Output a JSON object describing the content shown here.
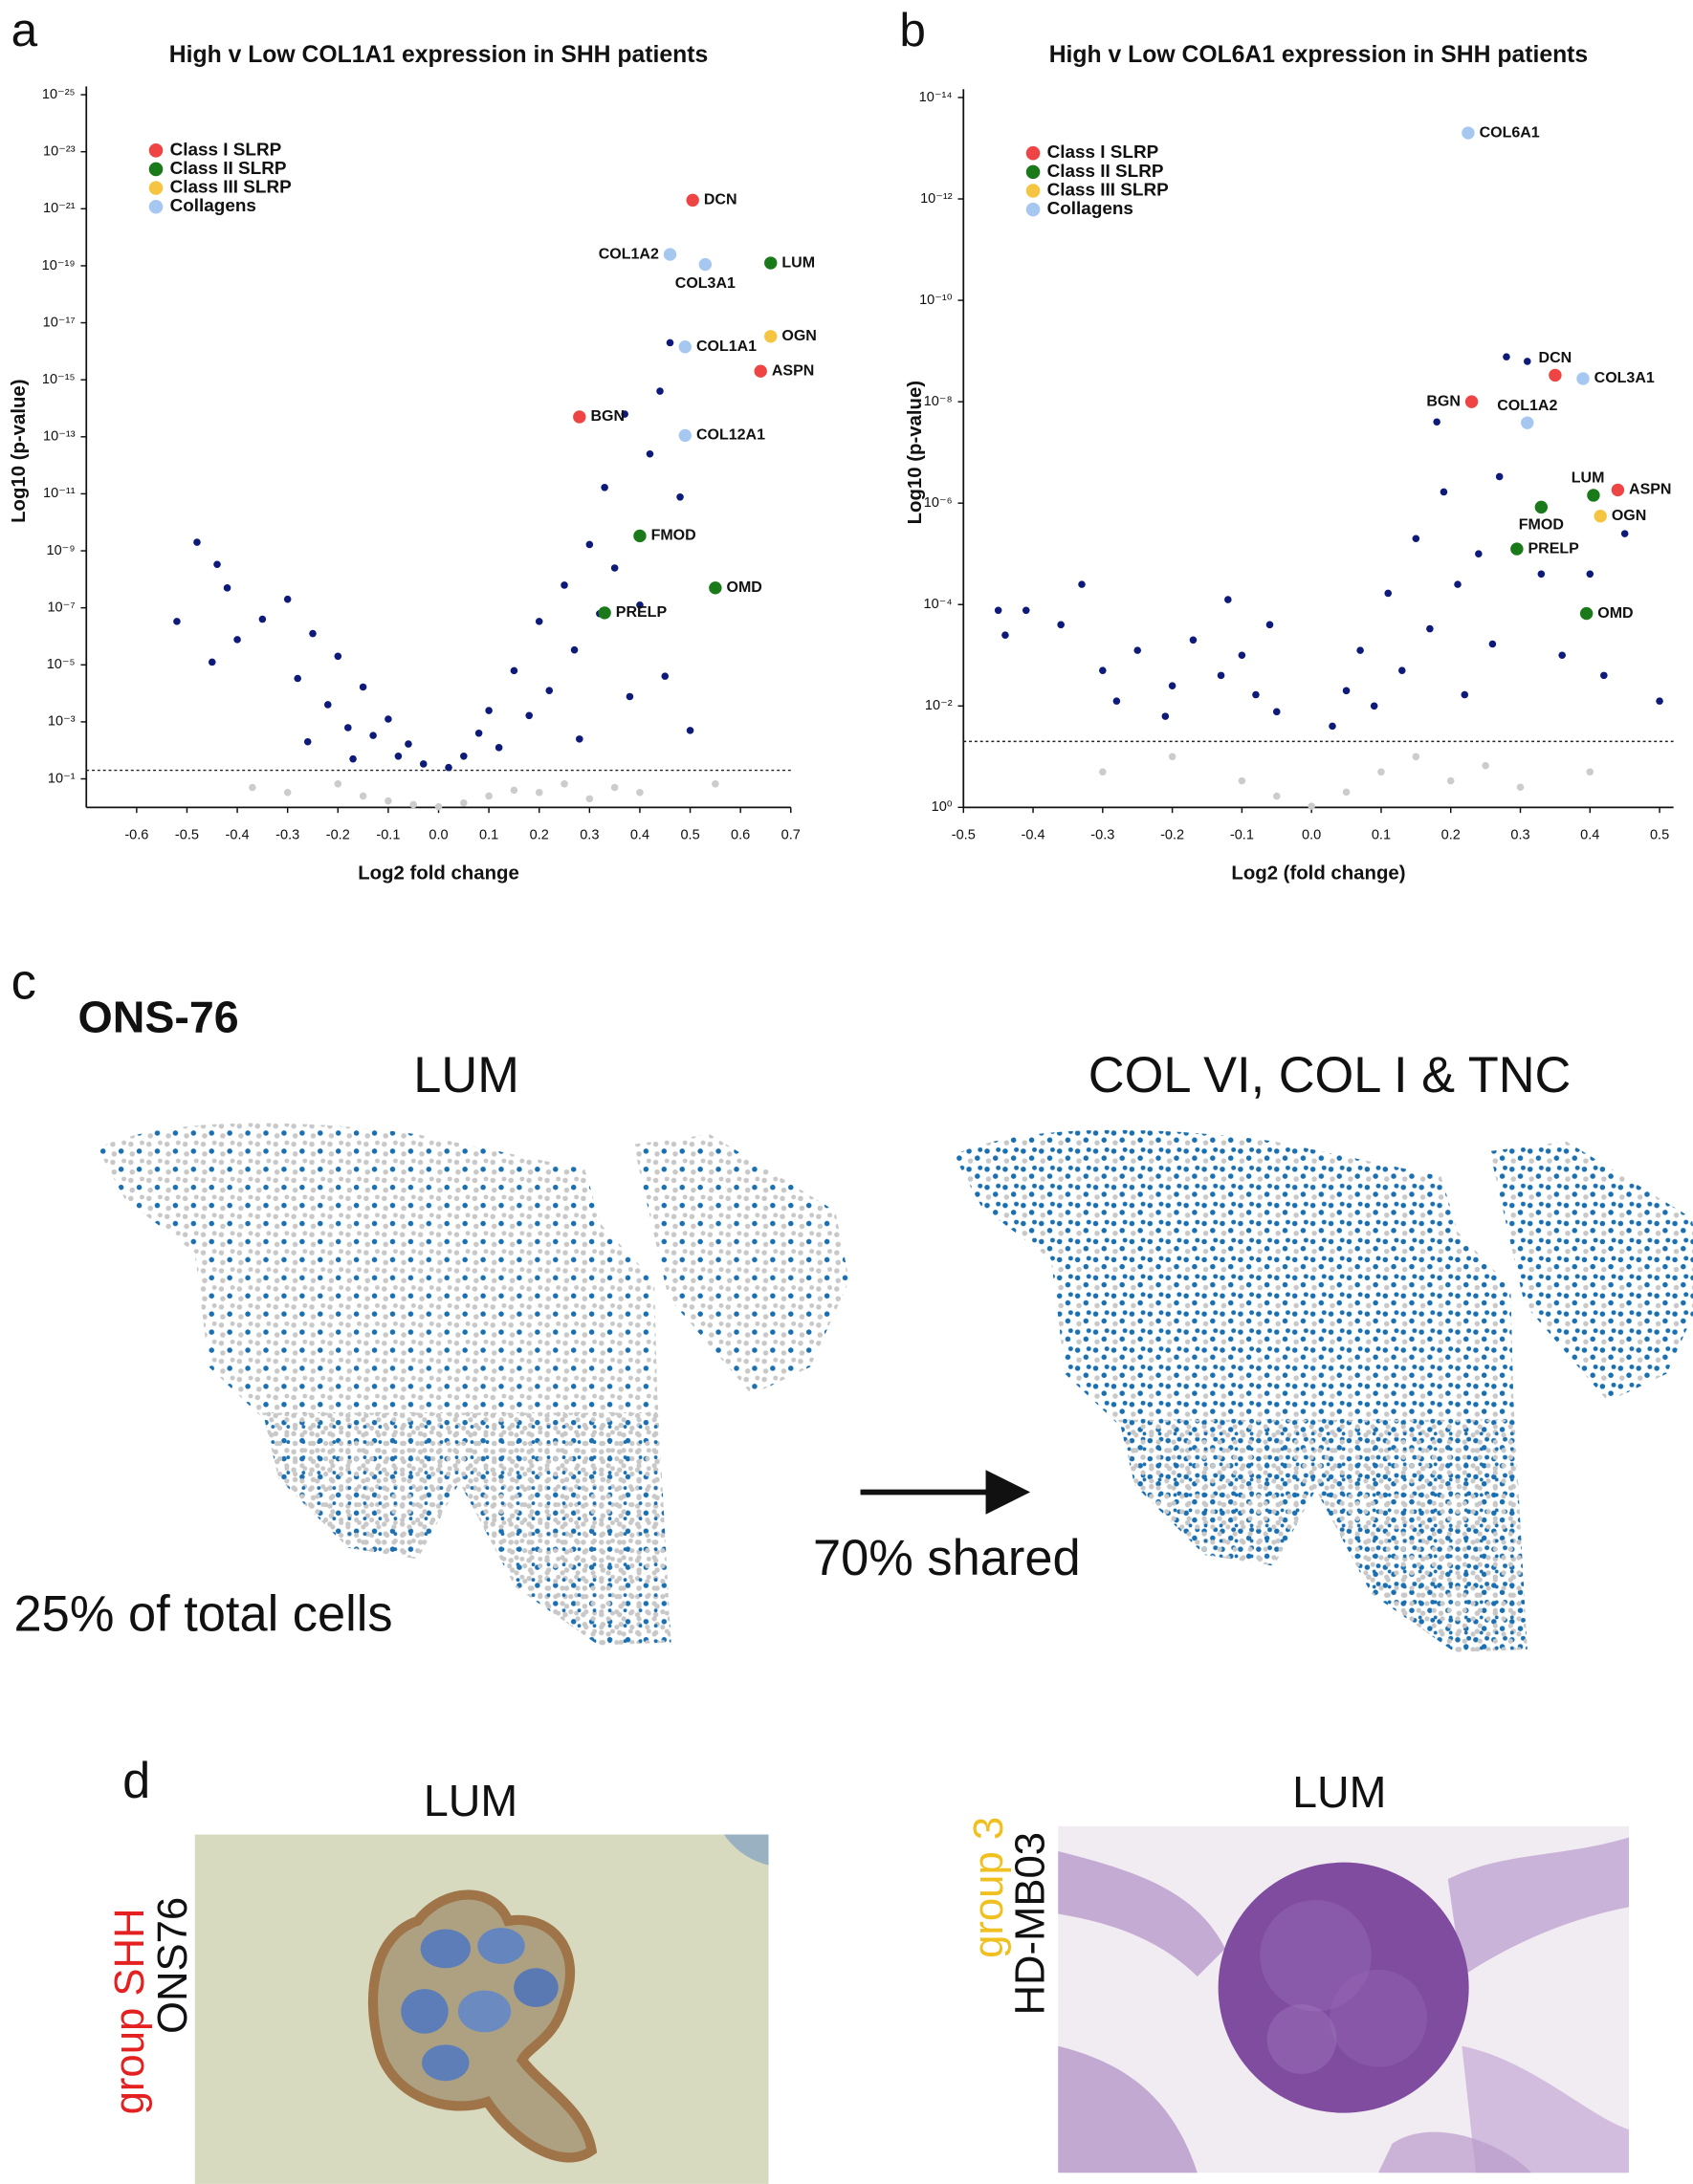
{
  "chart_data": [
    {
      "type": "scatter",
      "panel_label": "a",
      "title": "High v Low COL1A1 expression in SHH patients",
      "x_label": "Log2 fold change",
      "y_label": "Log10 (p-value)",
      "xlim": [
        -0.7,
        0.7
      ],
      "xticks": [
        -0.6,
        -0.5,
        -0.4,
        -0.3,
        -0.2,
        -0.1,
        {
          "value": 0,
          "label": "0.0"
        },
        0.1,
        0.2,
        0.3,
        0.4,
        0.5,
        0.6,
        0.7
      ],
      "log_y": true,
      "ylim": [
        1,
        1e-25
      ],
      "yticks": [
        {
          "value": 1e-25,
          "label": "10⁻²⁵"
        },
        {
          "value": 1e-23,
          "label": "10⁻²³"
        },
        {
          "value": 1e-21,
          "label": "10⁻²¹"
        },
        {
          "value": 1e-19,
          "label": "10⁻¹⁹"
        },
        {
          "value": 1e-17,
          "label": "10⁻¹⁷"
        },
        {
          "value": 1e-15,
          "label": "10⁻¹⁵"
        },
        {
          "value": 1e-13,
          "label": "10⁻¹³"
        },
        {
          "value": 1e-11,
          "label": "10⁻¹¹"
        },
        {
          "value": 1e-09,
          "label": "10⁻⁹"
        },
        {
          "value": 1e-07,
          "label": "10⁻⁷"
        },
        {
          "value": 1e-05,
          "label": "10⁻⁵"
        },
        {
          "value": 0.001,
          "label": "10⁻³"
        },
        {
          "value": 0.1,
          "label": "10⁻¹"
        }
      ],
      "threshold": 0.05,
      "legend": "top-left",
      "series": [
        {
          "color": "#cccccc",
          "x": [
            -0.37,
            -0.3,
            -0.2,
            -0.15,
            -0.1,
            -0.05,
            0,
            0.05,
            0.1,
            0.15,
            0.2,
            0.25,
            0.3,
            0.35,
            0.4,
            0.55
          ],
          "values": [
            0.2,
            0.3,
            0.15,
            0.4,
            0.6,
            0.8,
            0.95,
            0.7,
            0.4,
            0.25,
            0.3,
            0.15,
            0.5,
            0.2,
            0.3,
            0.15
          ]
        },
        {
          "color": "#0d1a7a",
          "x": [
            -0.48,
            -0.52,
            -0.44,
            -0.42,
            -0.4,
            -0.45,
            -0.35,
            -0.3,
            -0.28,
            -0.25,
            -0.22,
            -0.2,
            -0.18,
            -0.15,
            -0.13,
            -0.1,
            -0.08,
            -0.06,
            -0.26,
            -0.17,
            0.05,
            0.08,
            0.1,
            0.12,
            0.15,
            0.18,
            0.2,
            0.22,
            0.25,
            0.27,
            0.3,
            0.32,
            0.33,
            0.35,
            0.37,
            0.4,
            0.42,
            0.44,
            0.46,
            0.48,
            0.38,
            0.28,
            0.45,
            0.5,
            0.02,
            -0.03
          ],
          "values": [
            5e-10,
            3e-07,
            3e-09,
            2e-08,
            1.3e-06,
            8e-06,
            2.5e-07,
            5e-08,
            3e-05,
            8e-07,
            0.00025,
            5e-06,
            0.0016,
            6e-05,
            0.003,
            0.0008,
            0.016,
            0.006,
            0.005,
            0.02,
            0.016,
            0.0025,
            0.0004,
            0.008,
            1.6e-05,
            0.0006,
            3e-07,
            8e-05,
            1.6e-08,
            3e-06,
            6e-10,
            1.6e-07,
            6e-12,
            4e-09,
            1.6e-14,
            8e-08,
            4e-13,
            2.5e-15,
            5e-17,
            1.3e-11,
            0.00013,
            0.004,
            2.5e-05,
            0.002,
            0.04,
            0.03
          ]
        },
        {
          "name": "Class I SLRP",
          "color": "#ee4444",
          "labels": [
            "DCN",
            "ASPN",
            "BGN"
          ],
          "x": [
            0.505,
            0.64,
            0.28
          ],
          "values": [
            5e-22,
            5e-16,
            2e-14
          ]
        },
        {
          "name": "Class II SLRP",
          "color": "#1a7a1a",
          "labels": [
            "LUM",
            "FMOD",
            "OMD",
            "PRELP"
          ],
          "x": [
            0.66,
            0.4,
            0.55,
            0.33
          ],
          "values": [
            8e-20,
            3e-10,
            2e-08,
            1.5e-07
          ]
        },
        {
          "name": "Class III SLRP",
          "color": "#f5c542",
          "labels": [
            "OGN"
          ],
          "x": [
            0.66
          ],
          "values": [
            3e-17
          ]
        },
        {
          "name": "Collagens",
          "color": "#a6c8f0",
          "labels": [
            "COL1A2",
            "COL3A1",
            "COL1A1",
            "COL12A1"
          ],
          "x": [
            0.46,
            0.53,
            0.49,
            0.49
          ],
          "values": [
            4e-20,
            9e-20,
            7e-17,
            9e-14
          ]
        }
      ]
    },
    {
      "type": "scatter",
      "panel_label": "b",
      "title": "High v Low COL6A1 expression in SHH patients",
      "x_label": "Log2 (fold change)",
      "y_label": "Log10 (p-value)",
      "xlim": [
        -0.5,
        0.52
      ],
      "xticks": [
        -0.5,
        -0.4,
        -0.3,
        -0.2,
        -0.1,
        {
          "value": 0,
          "label": "0.0"
        },
        0.1,
        0.2,
        0.3,
        0.4,
        0.5
      ],
      "log_y": true,
      "ylim": [
        1,
        1e-14
      ],
      "yticks": [
        {
          "value": 1e-14,
          "label": "10⁻¹⁴"
        },
        {
          "value": 1e-12,
          "label": "10⁻¹²"
        },
        {
          "value": 1e-10,
          "label": "10⁻¹⁰"
        },
        {
          "value": 1e-08,
          "label": "10⁻⁸"
        },
        {
          "value": 1e-06,
          "label": "10⁻⁶"
        },
        {
          "value": 0.0001,
          "label": "10⁻⁴"
        },
        {
          "value": 0.01,
          "label": "10⁻²"
        },
        {
          "value": 1,
          "label": "10⁰"
        }
      ],
      "threshold": 0.05,
      "legend": "top-left",
      "series": [
        {
          "color": "#cccccc",
          "x": [
            -0.3,
            -0.2,
            -0.1,
            -0.05,
            0,
            0.05,
            0.1,
            0.15,
            0.2,
            0.25,
            0.3,
            0.4
          ],
          "values": [
            0.2,
            0.1,
            0.3,
            0.6,
            0.95,
            0.5,
            0.2,
            0.1,
            0.3,
            0.15,
            0.4,
            0.2
          ]
        },
        {
          "color": "#0d1a7a",
          "x": [
            -0.45,
            -0.44,
            -0.41,
            -0.36,
            -0.33,
            -0.3,
            -0.25,
            -0.2,
            -0.17,
            -0.13,
            -0.1,
            -0.08,
            -0.05,
            -0.12,
            -0.21,
            -0.28,
            -0.06,
            0.03,
            0.05,
            0.07,
            0.09,
            0.11,
            0.13,
            0.15,
            0.17,
            0.19,
            0.21,
            0.18,
            0.24,
            0.26,
            0.28,
            0.31,
            0.27,
            0.33,
            0.36,
            0.4,
            0.42,
            0.45,
            0.5,
            0.22
          ],
          "values": [
            0.00013,
            0.0004,
            0.00013,
            0.00025,
            4e-05,
            0.002,
            0.0008,
            0.004,
            0.0005,
            0.0025,
            0.001,
            0.006,
            0.013,
            8e-05,
            0.016,
            0.008,
            0.00025,
            0.025,
            0.005,
            0.0008,
            0.01,
            6e-05,
            0.002,
            5e-06,
            0.0003,
            6e-07,
            4e-05,
            2.5e-08,
            1e-05,
            0.0006,
            1.3e-09,
            1.6e-09,
            3e-07,
            2.5e-05,
            0.001,
            2.5e-05,
            0.0025,
            4e-06,
            0.008,
            0.006
          ]
        },
        {
          "name": "Class I SLRP",
          "color": "#ee4444",
          "labels": [
            "DCN",
            "BGN",
            "ASPN"
          ],
          "x": [
            0.35,
            0.23,
            0.44
          ],
          "values": [
            3e-09,
            1e-08,
            5.5e-07
          ]
        },
        {
          "name": "Class II SLRP",
          "color": "#1a7a1a",
          "labels": [
            "LUM",
            "FMOD",
            "PRELP",
            "OMD"
          ],
          "x": [
            0.405,
            0.33,
            0.295,
            0.395
          ],
          "values": [
            7e-07,
            1.2e-06,
            8e-06,
            0.00015
          ]
        },
        {
          "name": "Class III SLRP",
          "color": "#f5c542",
          "labels": [
            "OGN"
          ],
          "x": [
            0.415
          ],
          "values": [
            1.8e-06
          ]
        },
        {
          "name": "Collagens",
          "color": "#a6c8f0",
          "labels": [
            "COL6A1",
            "COL3A1",
            "COL1A2"
          ],
          "x": [
            0.225,
            0.39,
            0.31
          ],
          "values": [
            5e-14,
            3.5e-09,
            2.6e-08
          ]
        }
      ]
    }
  ],
  "panel_c": {
    "letter": "c",
    "cell_line": "ONS-76",
    "left_title": "LUM",
    "right_title": "COL VI, COL I & TNC",
    "arrow_label": "70% shared",
    "left_caption": "25% of total cells"
  },
  "panel_d": {
    "letter": "d",
    "left_title": "LUM",
    "left_group": "group SHH",
    "left_cell_line": "ONS76",
    "right_title": "LUM",
    "right_group": "group 3",
    "right_cell_line": "HD-MB03"
  }
}
